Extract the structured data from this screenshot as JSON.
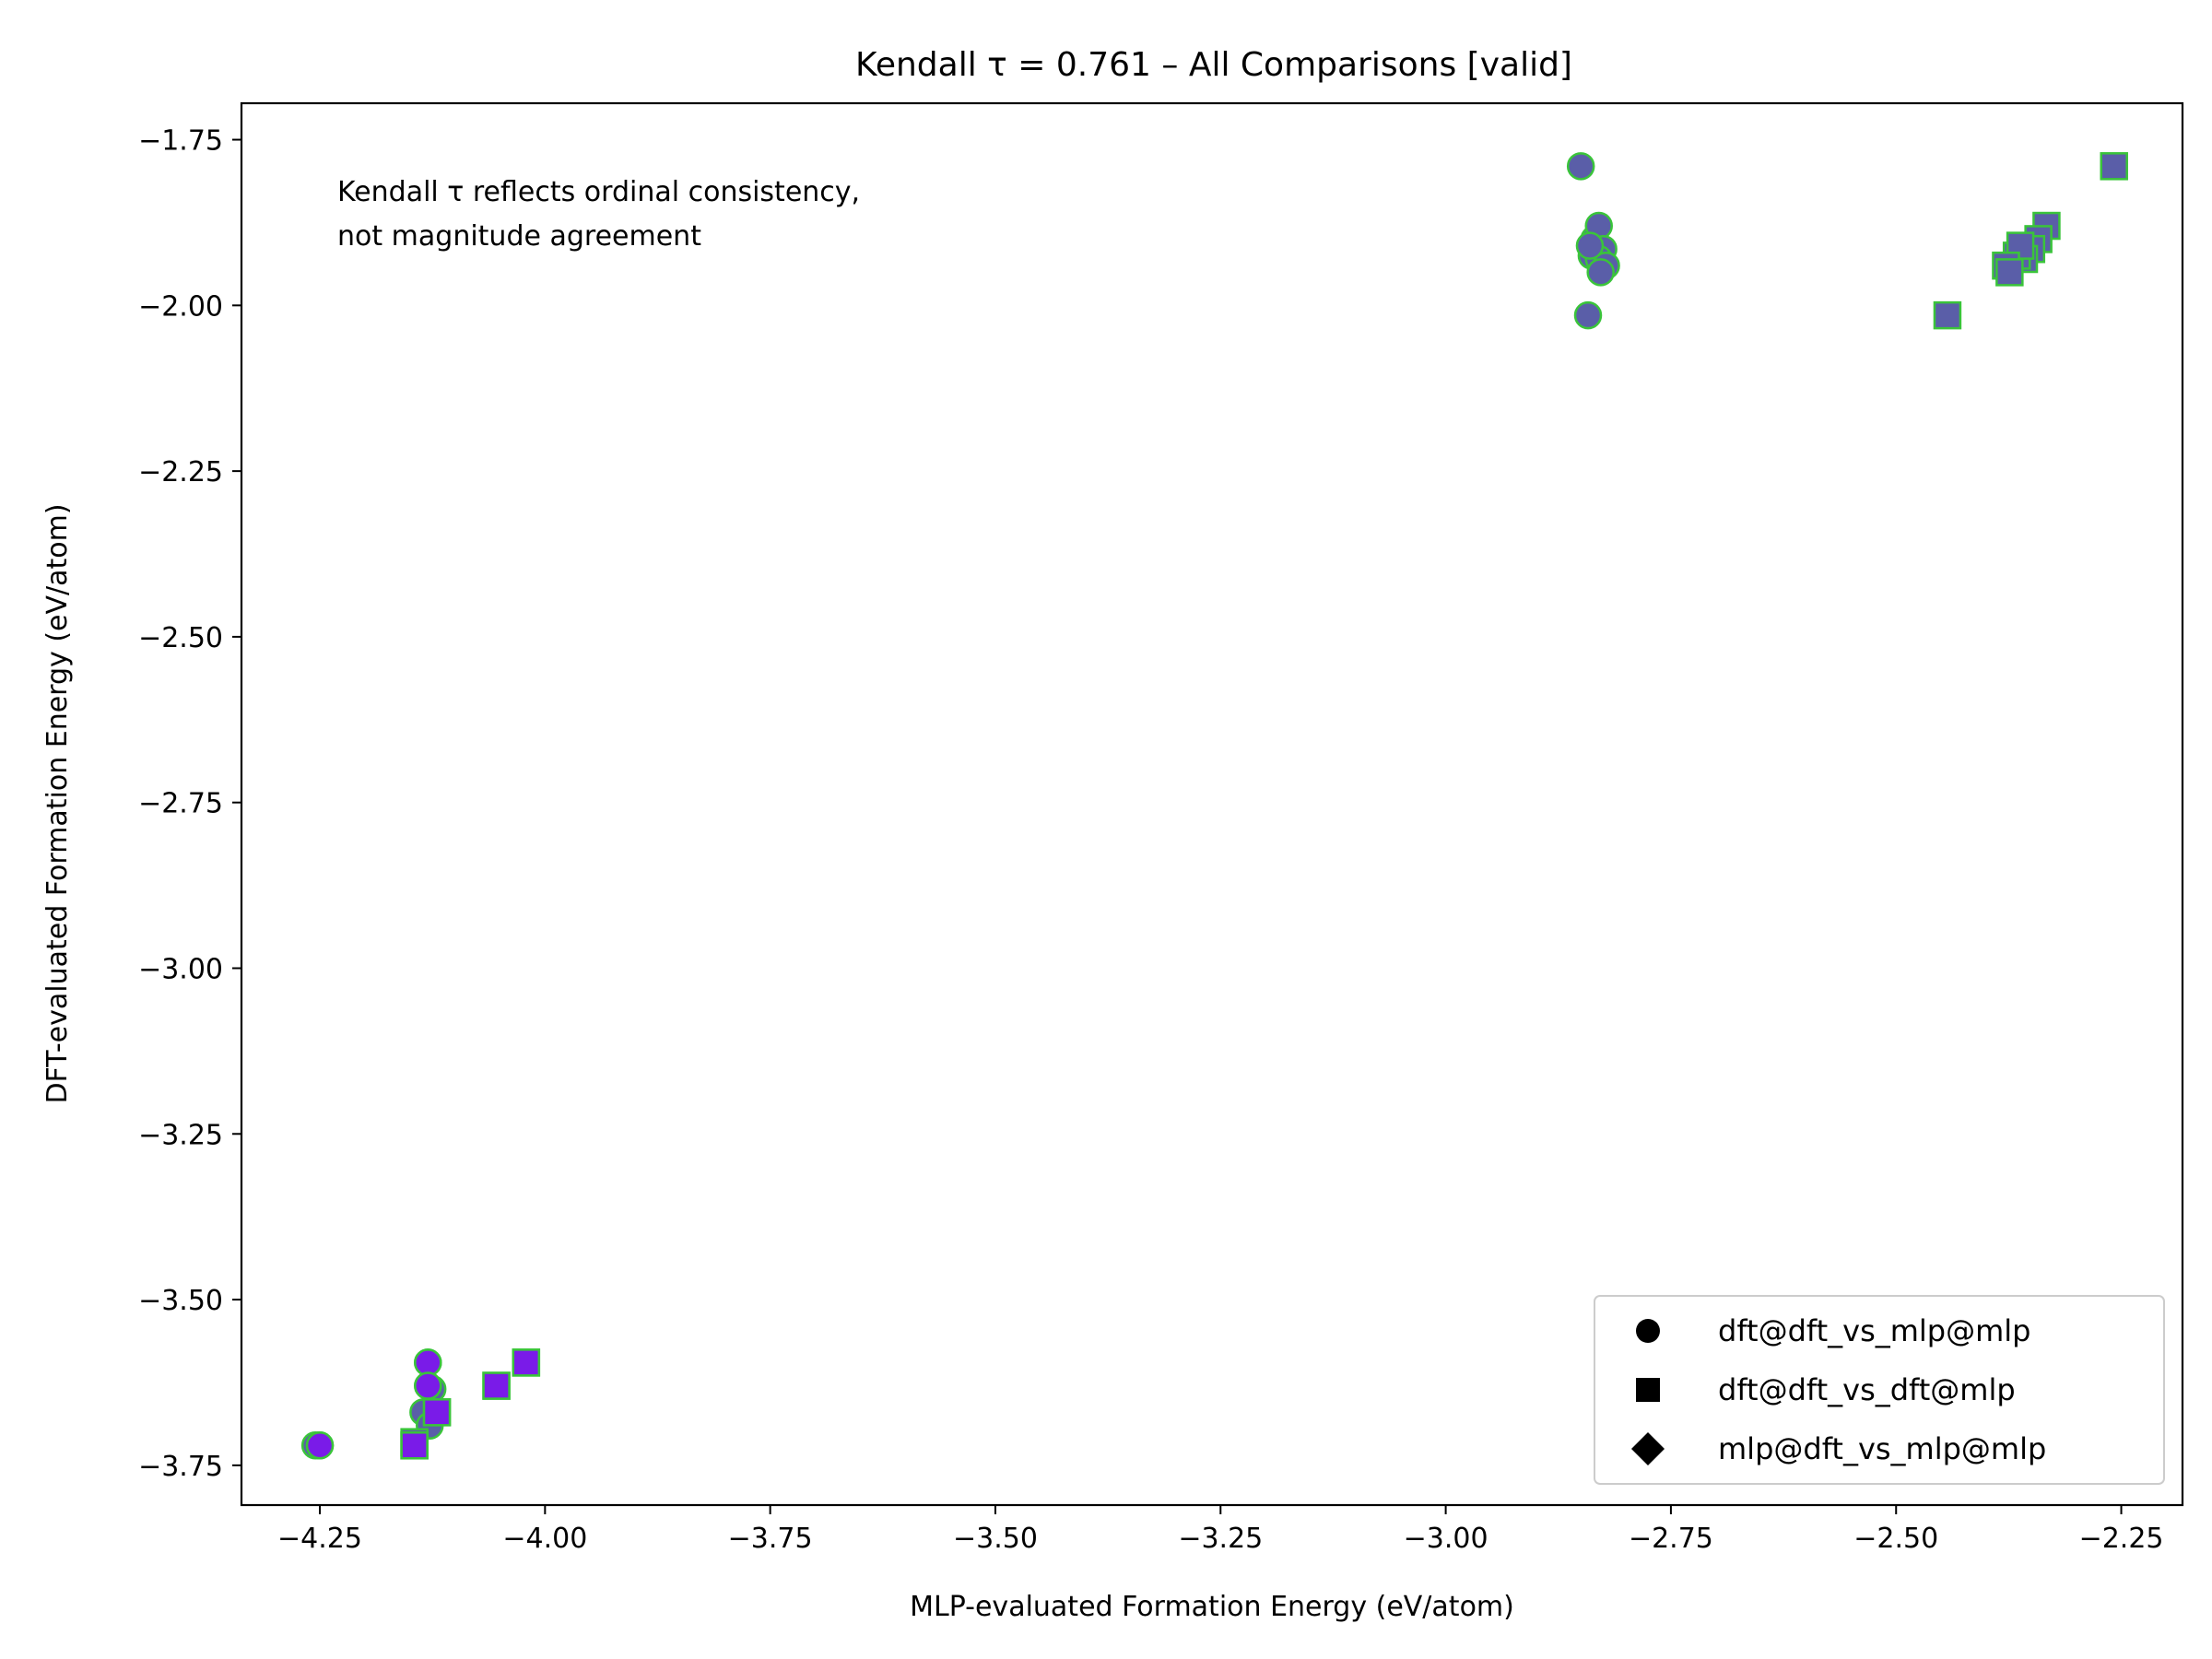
{
  "chart_data": {
    "type": "scatter",
    "title": "Kendall τ = 0.761 – All Comparisons [valid]",
    "xlabel": "MLP-evaluated Formation Energy (eV/atom)",
    "ylabel": "DFT-evaluated Formation Energy (eV/atom)",
    "xlim": [
      -4.337,
      -2.182
    ],
    "ylim": [
      -3.81,
      -1.695
    ],
    "xticks": [
      -4.25,
      -4.0,
      -3.75,
      -3.5,
      -3.25,
      -3.0,
      -2.75,
      -2.5,
      -2.25
    ],
    "xtick_labels": [
      "−4.25",
      "−4.00",
      "−3.75",
      "−3.50",
      "−3.25",
      "−3.00",
      "−2.75",
      "−2.50",
      "−2.25"
    ],
    "yticks": [
      -1.75,
      -2.0,
      -2.25,
      -2.5,
      -2.75,
      -3.0,
      -3.25,
      -3.5,
      -3.75
    ],
    "ytick_labels": [
      "−1.75",
      "−2.00",
      "−2.25",
      "−2.50",
      "−2.75",
      "−3.00",
      "−3.25",
      "−3.50",
      "−3.75"
    ],
    "grid": false,
    "annotation": [
      "Kendall τ reflects ordinal consistency,",
      "not magnitude agreement"
    ],
    "legend_position": "lower-right",
    "legend": [
      {
        "label": "dft@dft_vs_mlp@mlp",
        "marker": "circle"
      },
      {
        "label": "dft@dft_vs_dft@mlp",
        "marker": "square"
      },
      {
        "label": "mlp@dft_vs_mlp@mlp",
        "marker": "diamond"
      }
    ],
    "series": [
      {
        "marker": "circle",
        "colors": {
          "fill": "#5a5ea8",
          "edge": "#3ac43a"
        },
        "points": [
          [
            -2.85,
            -1.79
          ],
          [
            -2.835,
            -1.9
          ],
          [
            -2.83,
            -1.88
          ],
          [
            -2.838,
            -1.925
          ],
          [
            -2.825,
            -1.915
          ],
          [
            -2.83,
            -1.93
          ],
          [
            -2.822,
            -1.94
          ],
          [
            -2.828,
            -1.95
          ],
          [
            -2.84,
            -1.91
          ],
          [
            -2.842,
            -2.015
          ],
          [
            -4.255,
            -3.72
          ],
          [
            -4.25,
            -3.72
          ],
          [
            -4.13,
            -3.595
          ],
          [
            -4.125,
            -3.635
          ],
          [
            -4.13,
            -3.63
          ],
          [
            -4.135,
            -3.67
          ],
          [
            -4.128,
            -3.69
          ]
        ]
      },
      {
        "marker": "square",
        "colors": {
          "fill": "#5a5ea8",
          "edge": "#3ac43a"
        },
        "points": [
          [
            -2.258,
            -1.79
          ],
          [
            -2.333,
            -1.88
          ],
          [
            -2.342,
            -1.9
          ],
          [
            -2.35,
            -1.915
          ],
          [
            -2.358,
            -1.93
          ],
          [
            -2.366,
            -1.925
          ],
          [
            -2.362,
            -1.91
          ],
          [
            -2.378,
            -1.94
          ],
          [
            -2.374,
            -1.95
          ],
          [
            -2.443,
            -2.015
          ],
          [
            -4.145,
            -3.72
          ],
          [
            -4.145,
            -3.715
          ],
          [
            -4.12,
            -3.67
          ],
          [
            -4.054,
            -3.63
          ],
          [
            -4.021,
            -3.595
          ]
        ]
      },
      {
        "marker": "circle",
        "colors": {
          "fill": "#7a1be8",
          "edge": "#3ac43a"
        },
        "points": [
          [
            -4.25,
            -3.72
          ],
          [
            -4.13,
            -3.595
          ],
          [
            -4.13,
            -3.63
          ]
        ]
      },
      {
        "marker": "square",
        "colors": {
          "fill": "#7a1be8",
          "edge": "#3ac43a"
        },
        "points": [
          [
            -4.145,
            -3.72
          ],
          [
            -4.12,
            -3.67
          ],
          [
            -4.054,
            -3.63
          ],
          [
            -4.021,
            -3.595
          ]
        ]
      }
    ]
  }
}
